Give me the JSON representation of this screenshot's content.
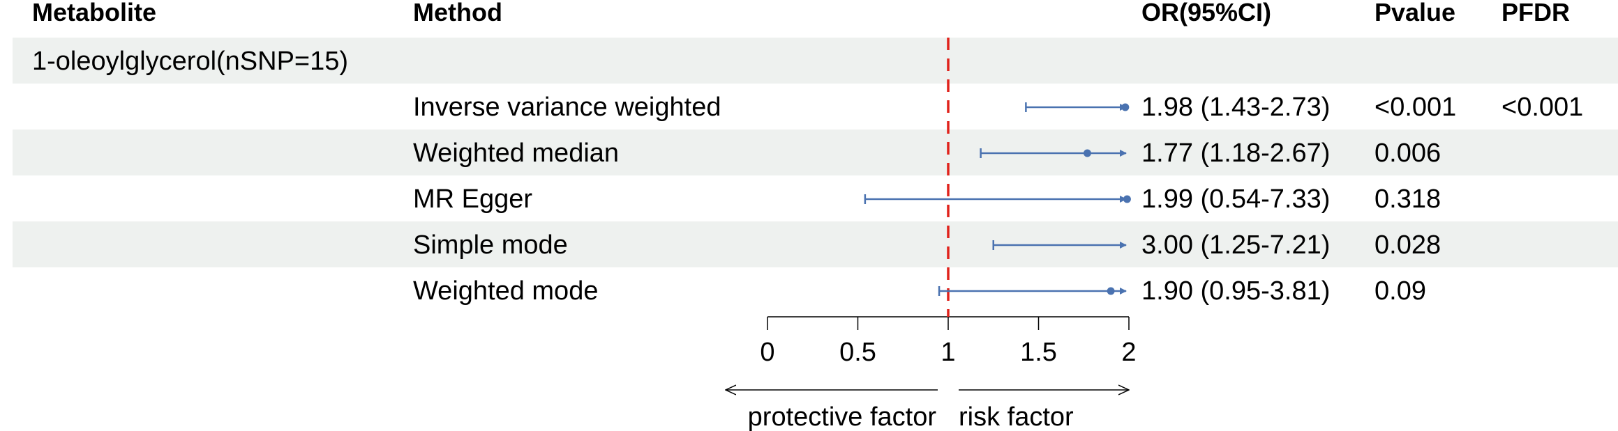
{
  "header": {
    "metabolite": "Metabolite",
    "method": "Method",
    "or": "OR(95%CI)",
    "pvalue": "Pvalue",
    "pfdr": "PFDR"
  },
  "group": {
    "label": "1-oleoylglycerol(nSNP=15)"
  },
  "rows": [
    {
      "method": "Inverse variance weighted",
      "or_text": "1.98 (1.43-2.73)",
      "pvalue": "<0.001",
      "pfdr": "<0.001"
    },
    {
      "method": "Weighted median",
      "or_text": "1.77 (1.18-2.67)",
      "pvalue": "0.006",
      "pfdr": ""
    },
    {
      "method": "MR Egger",
      "or_text": "1.99 (0.54-7.33)",
      "pvalue": "0.318",
      "pfdr": ""
    },
    {
      "method": "Simple mode",
      "or_text": "3.00 (1.25-7.21)",
      "pvalue": "0.028",
      "pfdr": ""
    },
    {
      "method": "Weighted mode",
      "or_text": "1.90 (0.95-3.81)",
      "pvalue": "0.09",
      "pfdr": ""
    }
  ],
  "chart_data": {
    "type": "forest",
    "xlim": [
      0,
      2
    ],
    "ticks": [
      "0",
      "0.5",
      "1",
      "1.5",
      "2"
    ],
    "tick_values": [
      0,
      0.5,
      1,
      1.5,
      2
    ],
    "reference_line": 1,
    "series": [
      {
        "name": "Inverse variance weighted",
        "or": 1.98,
        "lower": 1.43,
        "upper": 2.73
      },
      {
        "name": "Weighted median",
        "or": 1.77,
        "lower": 1.18,
        "upper": 2.67
      },
      {
        "name": "MR Egger",
        "or": 1.99,
        "lower": 0.54,
        "upper": 7.33
      },
      {
        "name": "Simple mode",
        "or": 3.0,
        "lower": 1.25,
        "upper": 7.21
      },
      {
        "name": "Weighted mode",
        "or": 1.9,
        "lower": 0.95,
        "upper": 3.81
      }
    ],
    "left_label": "protective factor",
    "right_label": "risk factor",
    "colors": {
      "ci": "#4a72b0",
      "reference": "#e0231c",
      "axis": "#000000"
    }
  }
}
